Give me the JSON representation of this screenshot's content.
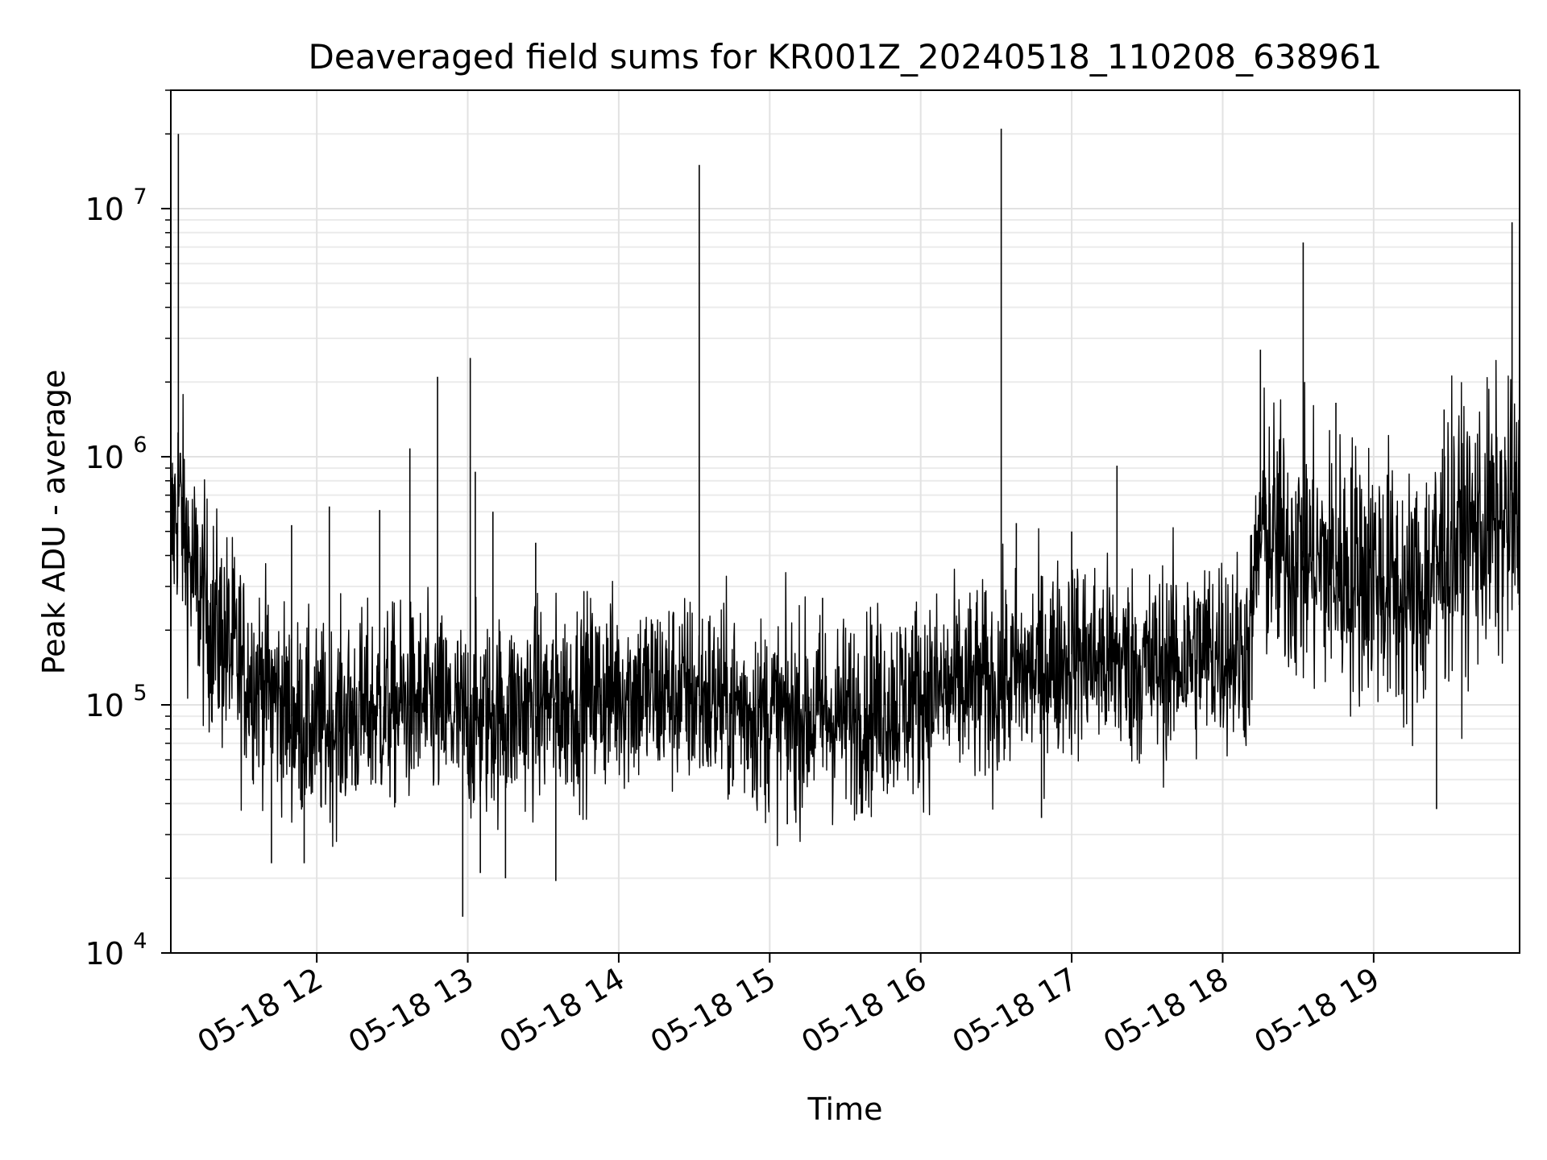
{
  "chart_data": {
    "type": "line",
    "title": "Deaveraged field sums for KR001Z_20240518_110208_638961",
    "xlabel": "Time",
    "ylabel": "Peak ADU - average",
    "yscale": "log",
    "ylim": [
      10000,
      30000000
    ],
    "xlim": [
      "05-18 11:02",
      "05-18 19:58"
    ],
    "grid": true,
    "color": "#000000",
    "x_ticks": [
      {
        "label": "05-18 12",
        "hour": 12
      },
      {
        "label": "05-18 13",
        "hour": 13
      },
      {
        "label": "05-18 14",
        "hour": 14
      },
      {
        "label": "05-18 15",
        "hour": 15
      },
      {
        "label": "05-18 16",
        "hour": 16
      },
      {
        "label": "05-18 17",
        "hour": 17
      },
      {
        "label": "05-18 18",
        "hour": 18
      },
      {
        "label": "05-18 19",
        "hour": 19
      }
    ],
    "y_ticks": [
      {
        "base": "10",
        "exp": "4",
        "value": 10000
      },
      {
        "base": "10",
        "exp": "5",
        "value": 100000
      },
      {
        "base": "10",
        "exp": "6",
        "value": 1000000
      },
      {
        "base": "10",
        "exp": "7",
        "value": 10000000
      }
    ],
    "series": [
      {
        "points": [
          [
            "05-18 11:02",
            450000
          ],
          [
            "05-18 11:05",
            700000
          ],
          [
            "05-18 11:10",
            350000
          ],
          [
            "05-18 11:15",
            250000
          ],
          [
            "05-18 11:20",
            200000
          ],
          [
            "05-18 11:25",
            170000
          ],
          [
            "05-18 11:30",
            140000
          ],
          [
            "05-18 11:40",
            120000
          ],
          [
            "05-18 11:50",
            90000
          ],
          [
            "05-18 12:00",
            80000
          ],
          [
            "05-18 12:20",
            95000
          ],
          [
            "05-18 12:40",
            100000
          ],
          [
            "05-18 13:00",
            85000
          ],
          [
            "05-18 13:30",
            100000
          ],
          [
            "05-18 14:00",
            115000
          ],
          [
            "05-18 14:30",
            110000
          ],
          [
            "05-18 15:00",
            90000
          ],
          [
            "05-18 15:30",
            90000
          ],
          [
            "05-18 16:00",
            110000
          ],
          [
            "05-18 16:30",
            120000
          ],
          [
            "05-18 17:00",
            160000
          ],
          [
            "05-18 17:30",
            140000
          ],
          [
            "05-18 18:00",
            170000
          ],
          [
            "05-18 18:10",
            160000
          ],
          [
            "05-18 18:15",
            500000
          ],
          [
            "05-18 18:30",
            400000
          ],
          [
            "05-18 18:45",
            350000
          ],
          [
            "05-18 19:00",
            350000
          ],
          [
            "05-18 19:15",
            250000
          ],
          [
            "05-18 19:30",
            450000
          ],
          [
            "05-18 19:45",
            520000
          ],
          [
            "05-18 19:58",
            550000
          ]
        ],
        "spikes": [
          [
            "05-18 11:02",
            1800000
          ],
          [
            "05-18 11:05",
            20000000
          ],
          [
            "05-18 11:50",
            530000
          ],
          [
            "05-18 12:05",
            630000
          ],
          [
            "05-18 12:25",
            610000
          ],
          [
            "05-18 12:37",
            1080000
          ],
          [
            "05-18 12:48",
            2100000
          ],
          [
            "05-18 13:01",
            2500000
          ],
          [
            "05-18 13:03",
            870000
          ],
          [
            "05-18 13:10",
            600000
          ],
          [
            "05-18 13:27",
            450000
          ],
          [
            "05-18 14:32",
            15000000
          ],
          [
            "05-18 15:21",
            270000
          ],
          [
            "05-18 16:32",
            21000000
          ],
          [
            "05-18 16:38",
            540000
          ],
          [
            "05-18 17:00",
            500000
          ],
          [
            "05-18 17:18",
            920000
          ],
          [
            "05-18 18:15",
            2700000
          ],
          [
            "05-18 18:32",
            7300000
          ],
          [
            "05-18 18:45",
            1650000
          ],
          [
            "05-18 19:28",
            1550000
          ],
          [
            "05-18 19:55",
            8800000
          ]
        ],
        "dips": [
          [
            "05-18 11:42",
            23000
          ],
          [
            "05-18 11:55",
            23000
          ],
          [
            "05-18 12:58",
            14000
          ],
          [
            "05-18 13:05",
            21000
          ],
          [
            "05-18 13:15",
            20000
          ],
          [
            "05-18 13:35",
            19500
          ],
          [
            "05-18 15:07",
            33000
          ],
          [
            "05-18 16:48",
            35000
          ],
          [
            "05-18 19:25",
            38000
          ]
        ]
      }
    ]
  }
}
